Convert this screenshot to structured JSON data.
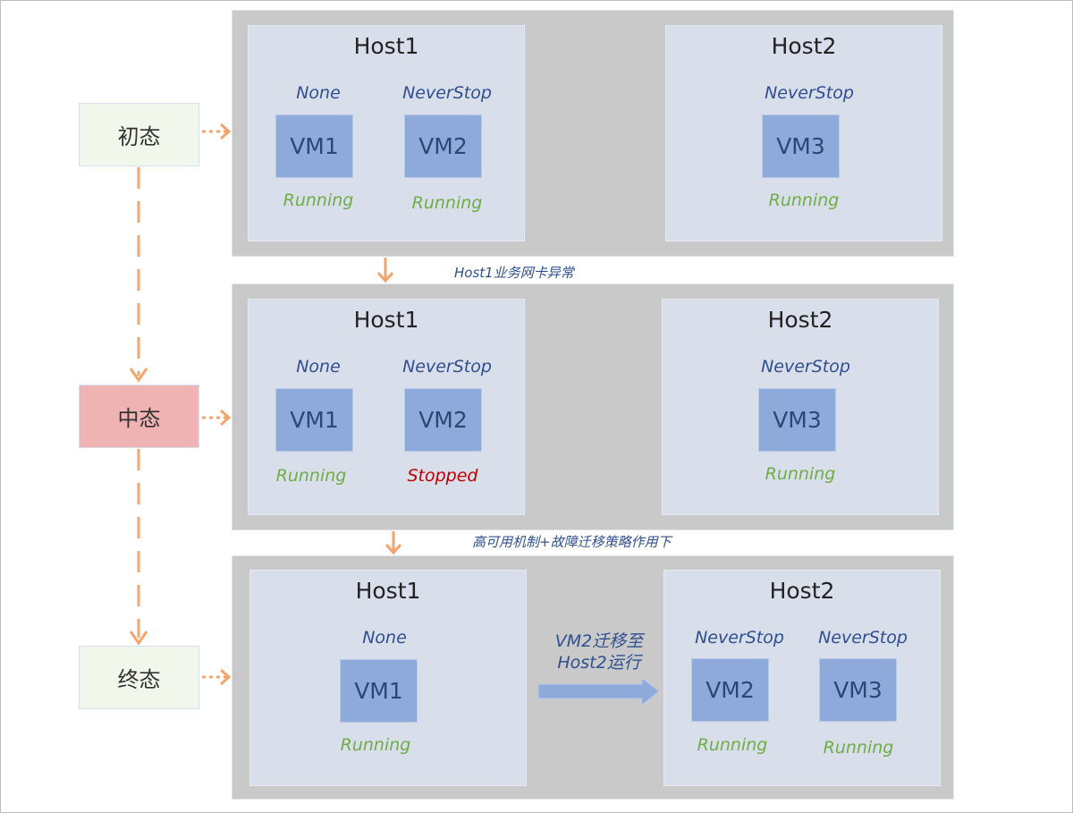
{
  "colors": {
    "accent_orange": "#f4a46c",
    "panel": "#c9c9c9",
    "host": "#d9deeb",
    "vm": "#8eaadb",
    "running": "#6fad46",
    "stopped": "#c00000",
    "initial_state": "#f2f7ec",
    "middle_state": "#f0b3b3"
  },
  "states": [
    {
      "label": "初态"
    },
    {
      "label": "中态"
    },
    {
      "label": "终态"
    }
  ],
  "transitions": [
    {
      "label": "Host1业务网卡异常"
    },
    {
      "label": "高可用机制+故障迁移策略作用下"
    }
  ],
  "migration": {
    "line1": "VM2迁移至",
    "line2": "Host2运行"
  },
  "panels": [
    {
      "hosts": [
        {
          "title": "Host1",
          "vms": [
            {
              "name": "VM1",
              "policy": "None",
              "status": "Running"
            },
            {
              "name": "VM2",
              "policy": "NeverStop",
              "status": "Running"
            }
          ]
        },
        {
          "title": "Host2",
          "vms": [
            {
              "name": "VM3",
              "policy": "NeverStop",
              "status": "Running"
            }
          ]
        }
      ]
    },
    {
      "hosts": [
        {
          "title": "Host1",
          "vms": [
            {
              "name": "VM1",
              "policy": "None",
              "status": "Running"
            },
            {
              "name": "VM2",
              "policy": "NeverStop",
              "status": "Stopped"
            }
          ]
        },
        {
          "title": "Host2",
          "vms": [
            {
              "name": "VM3",
              "policy": "NeverStop",
              "status": "Running"
            }
          ]
        }
      ]
    },
    {
      "hosts": [
        {
          "title": "Host1",
          "vms": [
            {
              "name": "VM1",
              "policy": "None",
              "status": "Running"
            }
          ]
        },
        {
          "title": "Host2",
          "vms": [
            {
              "name": "VM2",
              "policy": "NeverStop",
              "status": "Running"
            },
            {
              "name": "VM3",
              "policy": "NeverStop",
              "status": "Running"
            }
          ]
        }
      ]
    }
  ]
}
